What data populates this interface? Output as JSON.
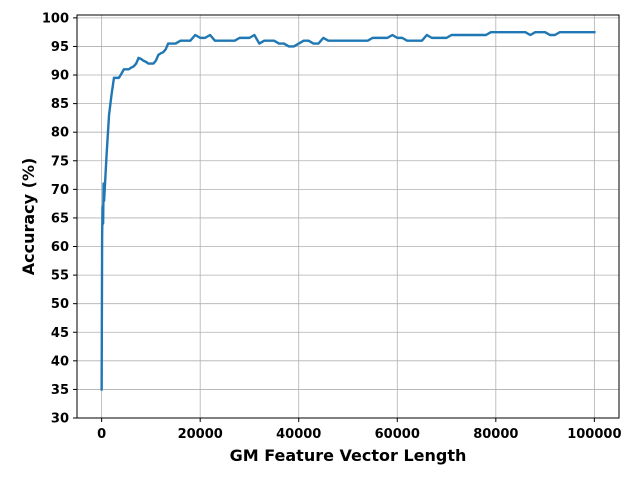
{
  "chart_data": {
    "type": "line",
    "title": "",
    "xlabel": "GM Feature Vector Length",
    "ylabel": "Accuracy (%)",
    "xlim": [
      -5000,
      105000
    ],
    "ylim": [
      30,
      100.5
    ],
    "xticks": [
      0,
      20000,
      40000,
      60000,
      80000,
      100000
    ],
    "xtick_labels": [
      "0",
      "20000",
      "40000",
      "60000",
      "80000",
      "100000"
    ],
    "yticks": [
      30,
      35,
      40,
      45,
      50,
      55,
      60,
      65,
      70,
      75,
      80,
      85,
      90,
      95,
      100
    ],
    "ytick_labels": [
      "30",
      "35",
      "40",
      "45",
      "50",
      "55",
      "60",
      "65",
      "70",
      "75",
      "80",
      "85",
      "90",
      "95",
      "100"
    ],
    "grid": true,
    "legend": null,
    "series": [
      {
        "color": "#1f77b4",
        "x": [
          0,
          100,
          200,
          300,
          400,
          500,
          1000,
          1500,
          2000,
          2500,
          3000,
          3500,
          4000,
          4500,
          5000,
          5500,
          6000,
          6500,
          7000,
          7500,
          8000,
          8500,
          9000,
          9500,
          10000,
          10500,
          11000,
          11500,
          12000,
          12500,
          13000,
          13500,
          14000,
          14500,
          15000,
          16000,
          17000,
          18000,
          19000,
          20000,
          21000,
          22000,
          23000,
          24000,
          25000,
          26000,
          27000,
          28000,
          29000,
          30000,
          31000,
          32000,
          33000,
          34000,
          35000,
          36000,
          37000,
          38000,
          39000,
          40000,
          41000,
          42000,
          43000,
          44000,
          45000,
          46000,
          47000,
          48000,
          49000,
          50000,
          51000,
          52000,
          53000,
          54000,
          55000,
          56000,
          57000,
          58000,
          59000,
          60000,
          61000,
          62000,
          63000,
          64000,
          65000,
          66000,
          67000,
          68000,
          69000,
          70000,
          71000,
          72000,
          73000,
          74000,
          75000,
          76000,
          77000,
          78000,
          79000,
          80000,
          81000,
          82000,
          83000,
          84000,
          85000,
          86000,
          87000,
          88000,
          89000,
          90000,
          91000,
          92000,
          93000,
          94000,
          95000,
          96000,
          97000,
          98000,
          99000,
          100000
        ],
        "y": [
          35,
          62,
          67,
          64,
          71,
          68,
          76,
          83,
          86.5,
          89.5,
          89.5,
          89.5,
          90.2,
          91,
          91,
          91,
          91.3,
          91.5,
          92,
          93,
          92.8,
          92.5,
          92.3,
          92,
          92,
          92,
          92.5,
          93.5,
          93.8,
          94,
          94.5,
          95.5,
          95.5,
          95.5,
          95.5,
          96,
          96,
          96,
          97,
          96.5,
          96.5,
          97,
          96,
          96,
          96,
          96,
          96,
          96.5,
          96.5,
          96.5,
          97,
          95.5,
          96,
          96,
          96,
          95.5,
          95.5,
          95,
          95,
          95.5,
          96,
          96,
          95.5,
          95.5,
          96.5,
          96,
          96,
          96,
          96,
          96,
          96,
          96,
          96,
          96,
          96.5,
          96.5,
          96.5,
          96.5,
          97,
          96.5,
          96.5,
          96,
          96,
          96,
          96,
          97,
          96.5,
          96.5,
          96.5,
          96.5,
          97,
          97,
          97,
          97,
          97,
          97,
          97,
          97,
          97.5,
          97.5,
          97.5,
          97.5,
          97.5,
          97.5,
          97.5,
          97.5,
          97,
          97.5,
          97.5,
          97.5,
          97,
          97,
          97.5,
          97.5,
          97.5,
          97.5,
          97.5,
          97.5,
          97.5,
          97.5
        ]
      }
    ]
  }
}
